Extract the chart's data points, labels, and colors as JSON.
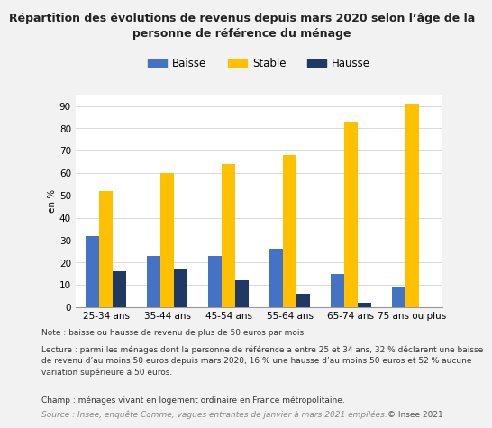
{
  "title": "Répartition des évolutions de revenus depuis mars 2020 selon l’âge de la\npersonne de référence du ménage",
  "ylabel": "en %",
  "categories": [
    "25-34 ans",
    "35-44 ans",
    "45-54 ans",
    "55-64 ans",
    "65-74 ans",
    "75 ans ou plus"
  ],
  "baisse": [
    32,
    23,
    23,
    26,
    15,
    9
  ],
  "stable": [
    52,
    60,
    64,
    68,
    83,
    91
  ],
  "hausse": [
    16,
    17,
    12,
    6,
    2,
    0
  ],
  "color_baisse": "#4472C4",
  "color_stable": "#FFC000",
  "color_hausse": "#1F3864",
  "ylim": [
    0,
    95
  ],
  "yticks": [
    0,
    10,
    20,
    30,
    40,
    50,
    60,
    70,
    80,
    90
  ],
  "bg_color": "#F2F2F2",
  "chart_bg": "#FFFFFF",
  "legend_labels": [
    "Baisse",
    "Stable",
    "Hausse"
  ],
  "note1": "Note : baisse ou hausse de revenu de plus de 50 euros par mois.",
  "note2": "Lecture : parmi les ménages dont la personne de référence a entre 25 et 34 ans, 32 % déclarent une baisse\nde revenu d’au moins 50 euros depuis mars 2020, 16 % une hausse d’au moins 50 euros et 52 % aucune\nvariation supérieure à 50 euros.",
  "note3": "Champ : ménages vivant en logement ordinaire en France métropolitaine.",
  "source": "Source : Insee, enquête Comme, vagues entrantes de janvier à mars 2021 empilées.",
  "copyright": "© Insee 2021",
  "bar_width": 0.22,
  "title_fontsize": 9,
  "tick_fontsize": 7.5,
  "note_fontsize": 6.5
}
